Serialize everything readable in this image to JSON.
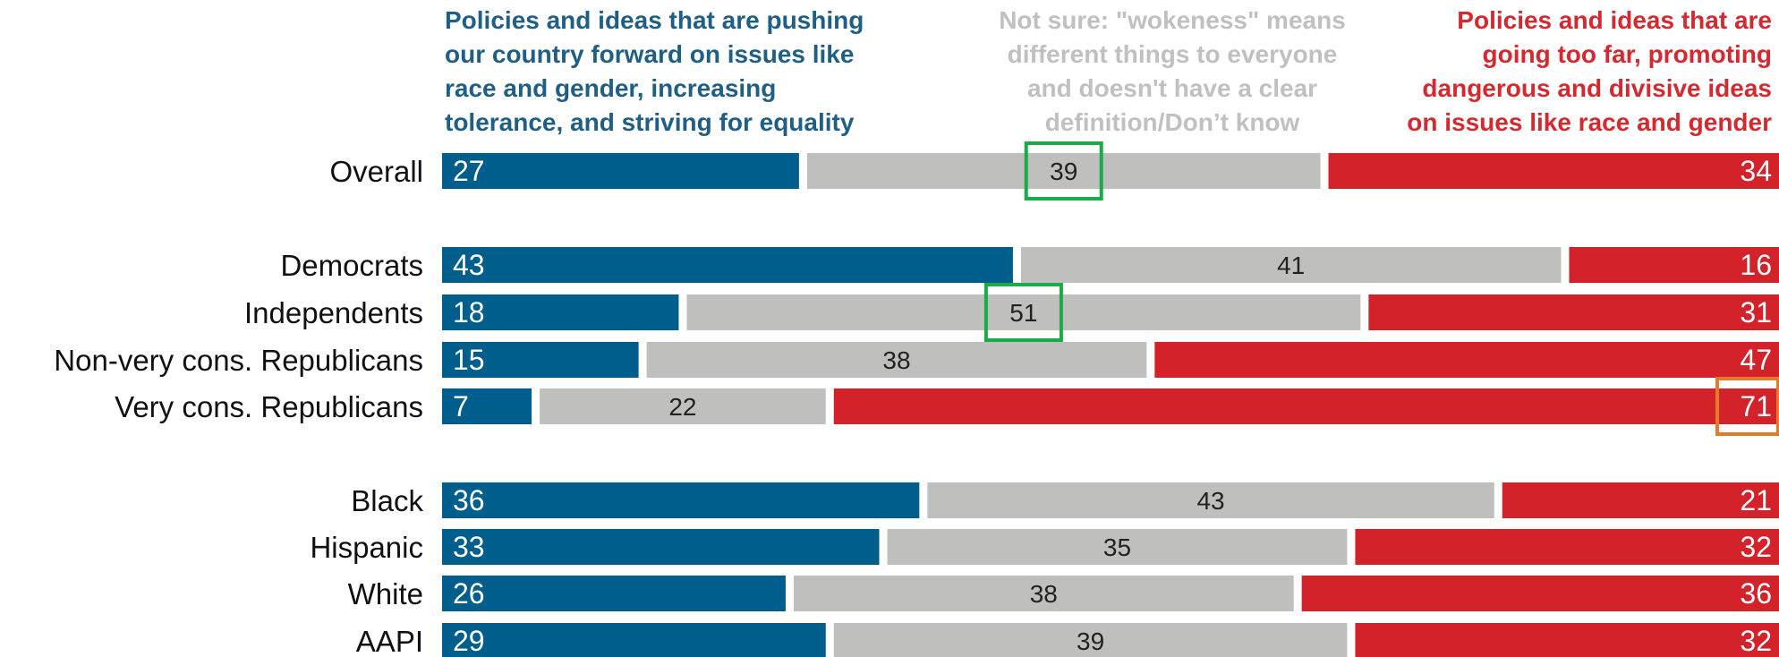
{
  "legend": {
    "left": {
      "lines": [
        "Policies and ideas that are pushing",
        "our country forward on issues like",
        "race and gender, increasing",
        "tolerance, and striving for equality"
      ]
    },
    "middle": {
      "lines": [
        "Not sure: \"wokeness\" means",
        "different things to everyone",
        "and doesn't have a clear",
        "definition/Don’t know"
      ]
    },
    "right": {
      "lines": [
        "Policies and ideas that are",
        "going too far, promoting",
        "dangerous and divisive ideas",
        "on issues like race and gender"
      ]
    }
  },
  "chart_data": {
    "type": "bar",
    "orientation": "horizontal",
    "stacked": true,
    "categories": [
      "Overall",
      "Democrats",
      "Independents",
      "Non-very cons. Republicans",
      "Very cons. Republicans",
      "Black",
      "Hispanic",
      "White",
      "AAPI"
    ],
    "groups": [
      [
        "Overall"
      ],
      [
        "Democrats",
        "Independents",
        "Non-very cons. Republicans",
        "Very cons. Republicans"
      ],
      [
        "Black",
        "Hispanic",
        "White",
        "AAPI"
      ]
    ],
    "series": [
      {
        "key": "forward",
        "values": [
          27,
          43,
          18,
          15,
          7,
          36,
          33,
          26,
          29
        ],
        "color": "#005e8c",
        "label_color": "#ffffff"
      },
      {
        "key": "not_sure",
        "values": [
          39,
          41,
          51,
          38,
          22,
          43,
          35,
          38,
          39
        ],
        "color": "#bfbfbe",
        "label_color": "#222222"
      },
      {
        "key": "too_far",
        "values": [
          34,
          16,
          31,
          47,
          71,
          21,
          32,
          36,
          32
        ],
        "color": "#d3222a",
        "label_color": "#ffffff"
      }
    ],
    "highlights": [
      {
        "category": "Overall",
        "series": "not_sure",
        "color": "#1aaa48"
      },
      {
        "category": "Independents",
        "series": "not_sure",
        "color": "#1aaa48"
      },
      {
        "category": "Very cons. Republicans",
        "series": "too_far",
        "color": "#e8782a"
      }
    ],
    "xlim": [
      0,
      100
    ],
    "grid": false
  }
}
